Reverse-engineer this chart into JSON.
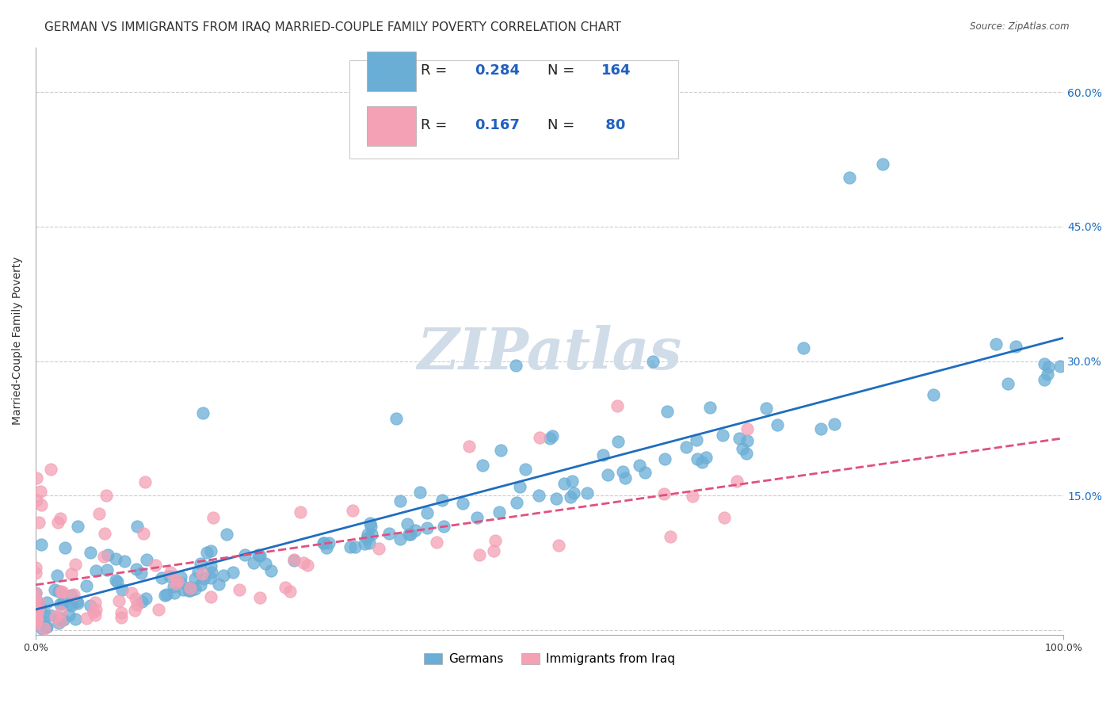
{
  "title": "GERMAN VS IMMIGRANTS FROM IRAQ MARRIED-COUPLE FAMILY POVERTY CORRELATION CHART",
  "source": "Source: ZipAtlas.com",
  "ylabel": "Married-Couple Family Poverty",
  "xlim": [
    0,
    1.0
  ],
  "ylim": [
    -0.005,
    0.65
  ],
  "yticks": [
    0.0,
    0.15,
    0.3,
    0.45,
    0.6
  ],
  "yticklabels": [
    "",
    "15.0%",
    "30.0%",
    "45.0%",
    "60.0%"
  ],
  "german_R": 0.284,
  "german_N": 164,
  "iraq_R": 0.167,
  "iraq_N": 80,
  "blue_color": "#6aaed6",
  "pink_color": "#f4a0b5",
  "blue_line_color": "#1f6dbf",
  "pink_line_color": "#e05080",
  "background_color": "#ffffff",
  "grid_color": "#cccccc",
  "watermark_text": "ZIPatlas",
  "watermark_color": "#d0dce8",
  "title_fontsize": 11,
  "label_fontsize": 10,
  "tick_fontsize": 9,
  "legend_R_color": "#2060c0",
  "legend_N_color": "#2060c0"
}
